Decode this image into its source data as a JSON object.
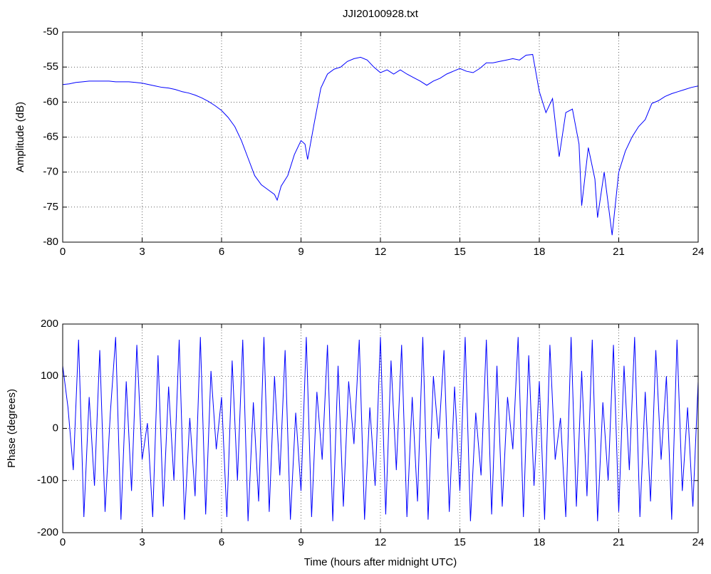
{
  "chart_data": [
    {
      "type": "line",
      "title": "JJI20100928.txt",
      "ylabel": "Amplitude (dB)",
      "color": "#0000ff",
      "grid": true,
      "xlim": [
        0,
        24
      ],
      "xticks": [
        0,
        3,
        6,
        9,
        12,
        15,
        18,
        21,
        24
      ],
      "ylim": [
        -80,
        -50
      ],
      "yticks": [
        -80,
        -75,
        -70,
        -65,
        -60,
        -55,
        -50
      ],
      "x": [
        0,
        0.25,
        0.5,
        0.75,
        1,
        1.25,
        1.5,
        1.75,
        2,
        2.25,
        2.5,
        2.75,
        3,
        3.25,
        3.5,
        3.75,
        4,
        4.25,
        4.5,
        4.75,
        5,
        5.25,
        5.5,
        5.75,
        6,
        6.25,
        6.5,
        6.75,
        7,
        7.25,
        7.5,
        7.75,
        8,
        8.1,
        8.25,
        8.5,
        8.75,
        9,
        9.15,
        9.25,
        9.5,
        9.75,
        10,
        10.25,
        10.5,
        10.75,
        11,
        11.25,
        11.5,
        11.75,
        12,
        12.25,
        12.5,
        12.75,
        13,
        13.25,
        13.5,
        13.75,
        14,
        14.25,
        14.5,
        14.75,
        15,
        15.25,
        15.5,
        15.75,
        16,
        16.25,
        16.5,
        16.75,
        17,
        17.25,
        17.5,
        17.75,
        18,
        18.25,
        18.5,
        18.75,
        19,
        19.25,
        19.5,
        19.6,
        19.85,
        20.1,
        20.2,
        20.45,
        20.75,
        21,
        21.25,
        21.5,
        21.75,
        22,
        22.25,
        22.5,
        22.75,
        23,
        23.25,
        23.5,
        23.75,
        24
      ],
      "values": [
        -57.5,
        -57.4,
        -57.2,
        -57.1,
        -57.0,
        -57.0,
        -57.0,
        -57.0,
        -57.1,
        -57.1,
        -57.1,
        -57.2,
        -57.3,
        -57.5,
        -57.7,
        -57.9,
        -58.0,
        -58.2,
        -58.5,
        -58.7,
        -59.0,
        -59.4,
        -59.9,
        -60.5,
        -61.2,
        -62.2,
        -63.5,
        -65.5,
        -68,
        -70.5,
        -71.8,
        -72.5,
        -73.2,
        -74,
        -72,
        -70.5,
        -67.5,
        -65.5,
        -66,
        -68.2,
        -63,
        -58,
        -56,
        -55.3,
        -55,
        -54.2,
        -53.8,
        -53.6,
        -54,
        -55,
        -55.8,
        -55.4,
        -56,
        -55.4,
        -56,
        -56.5,
        -57,
        -57.6,
        -57,
        -56.6,
        -56,
        -55.6,
        -55.2,
        -55.6,
        -55.8,
        -55.2,
        -54.4,
        -54.4,
        -54.2,
        -54.0,
        -53.8,
        -54,
        -53.3,
        -53.2,
        -58.5,
        -61.5,
        -59.5,
        -67.8,
        -61.5,
        -61,
        -66,
        -74.8,
        -66.5,
        -71,
        -76.5,
        -70,
        -79,
        -70,
        -67,
        -65,
        -63.5,
        -62.5,
        -60.2,
        -59.8,
        -59.2,
        -58.8,
        -58.5,
        -58.2,
        -57.9,
        -57.7
      ]
    },
    {
      "type": "line",
      "ylabel": "Phase (degrees)",
      "xlabel": "Time (hours after midnight UTC)",
      "color": "#0000ff",
      "grid": true,
      "xlim": [
        0,
        24
      ],
      "xticks": [
        0,
        3,
        6,
        9,
        12,
        15,
        18,
        21,
        24
      ],
      "ylim": [
        -200,
        200
      ],
      "yticks": [
        -200,
        -100,
        0,
        100,
        200
      ],
      "x": [
        0,
        0.2,
        0.4,
        0.6,
        0.8,
        1,
        1.2,
        1.4,
        1.6,
        1.8,
        2,
        2.2,
        2.4,
        2.6,
        2.8,
        3,
        3.2,
        3.4,
        3.6,
        3.8,
        4,
        4.2,
        4.4,
        4.6,
        4.8,
        5,
        5.2,
        5.4,
        5.6,
        5.8,
        6,
        6.2,
        6.4,
        6.6,
        6.8,
        7,
        7.2,
        7.4,
        7.6,
        7.8,
        8,
        8.2,
        8.4,
        8.6,
        8.8,
        9,
        9.2,
        9.4,
        9.6,
        9.8,
        10,
        10.2,
        10.4,
        10.6,
        10.8,
        11,
        11.2,
        11.4,
        11.6,
        11.8,
        12,
        12.2,
        12.4,
        12.6,
        12.8,
        13,
        13.2,
        13.4,
        13.6,
        13.8,
        14,
        14.2,
        14.4,
        14.6,
        14.8,
        15,
        15.2,
        15.4,
        15.6,
        15.8,
        16,
        16.2,
        16.4,
        16.6,
        16.8,
        17,
        17.2,
        17.4,
        17.6,
        17.8,
        18,
        18.2,
        18.4,
        18.6,
        18.8,
        19,
        19.2,
        19.4,
        19.6,
        19.8,
        20,
        20.2,
        20.4,
        20.6,
        20.8,
        21,
        21.2,
        21.4,
        21.6,
        21.8,
        22,
        22.2,
        22.4,
        22.6,
        22.8,
        23,
        23.2,
        23.4,
        23.6,
        23.8,
        24
      ],
      "values": [
        120,
        40,
        -80,
        170,
        -170,
        60,
        -110,
        150,
        -160,
        30,
        175,
        -175,
        90,
        -120,
        160,
        -60,
        10,
        -170,
        140,
        -150,
        80,
        -100,
        170,
        -175,
        20,
        -130,
        175,
        -165,
        110,
        -40,
        60,
        -170,
        130,
        -100,
        170,
        -178,
        50,
        -140,
        175,
        -160,
        100,
        -90,
        150,
        -175,
        30,
        -120,
        175,
        -170,
        70,
        -60,
        160,
        -178,
        120,
        -150,
        90,
        -30,
        170,
        -175,
        40,
        -110,
        175,
        -165,
        130,
        -80,
        160,
        -170,
        60,
        -140,
        175,
        -175,
        100,
        -20,
        150,
        -160,
        80,
        -120,
        175,
        -178,
        30,
        -90,
        170,
        -165,
        120,
        -150,
        60,
        -40,
        175,
        -170,
        140,
        -110,
        90,
        -175,
        160,
        -60,
        20,
        -170,
        175,
        -150,
        110,
        -130,
        170,
        -178,
        50,
        -100,
        160,
        -160,
        120,
        -80,
        175,
        -170,
        70,
        -140,
        150,
        -60,
        100,
        -175,
        170,
        -120,
        40,
        -150,
        90
      ]
    }
  ]
}
